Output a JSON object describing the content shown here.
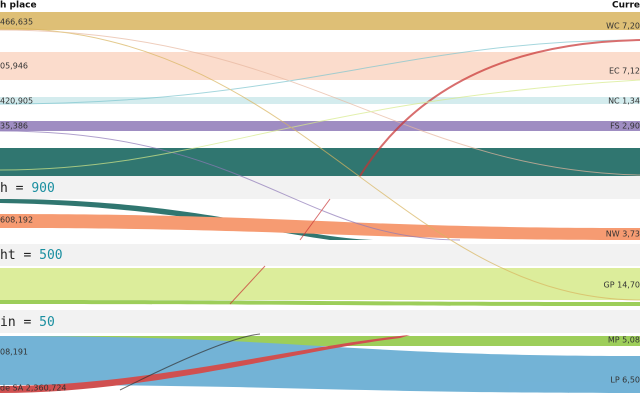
{
  "header": {
    "left_title": "h place",
    "right_title": "Curre"
  },
  "left_labels": [
    "466,635",
    "05,946",
    "420,905",
    "35,386",
    "608,192",
    "08,191",
    "de SA 2,360,724"
  ],
  "right_labels": [
    "WC 7,20",
    "EC 7,12",
    "NC 1,34",
    "FS 2,90",
    "NW 3,73",
    "GP 14,70",
    "MP 5,08",
    "LP 6,50"
  ],
  "operator": "=",
  "code_lines": [
    {
      "key": "h",
      "value": "900"
    },
    {
      "key": "ht",
      "value": "500"
    },
    {
      "key": "in",
      "value": "50"
    }
  ]
}
